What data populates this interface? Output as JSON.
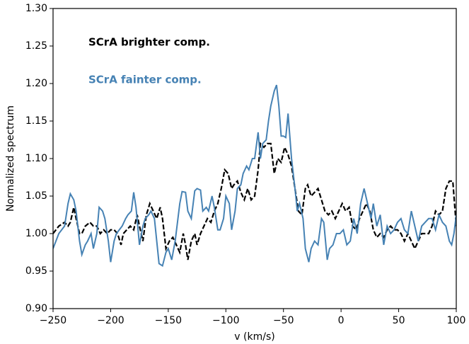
{
  "chart_data": {
    "type": "line",
    "xlabel": "v (km/s)",
    "ylabel": "Normalized spectrum",
    "xlim": [
      -250,
      100
    ],
    "xticks": [
      {
        "value": -250,
        "label": "−250"
      },
      {
        "value": -200,
        "label": "−200"
      },
      {
        "value": -150,
        "label": "−150"
      },
      {
        "value": -100,
        "label": "−100"
      },
      {
        "value": -50,
        "label": "−50"
      },
      0,
      50,
      100
    ],
    "ylim": [
      0.9,
      1.3
    ],
    "yticks": [
      {
        "value": 0.9,
        "label": "0.90"
      },
      0.95,
      {
        "value": 1.0,
        "label": "1.00"
      },
      1.05,
      {
        "value": 1.1,
        "label": "1.10"
      },
      1.15,
      {
        "value": 1.2,
        "label": "1.20"
      },
      1.25,
      {
        "value": 1.3,
        "label": "1.30"
      }
    ],
    "grid": false,
    "series": [
      {
        "name": "SCrA brighter comp.",
        "color": "#000000",
        "dashed": true,
        "x": [
          -250,
          -245,
          -240,
          -237,
          -235,
          -232,
          -230,
          -227,
          -225,
          -222,
          -218,
          -215,
          -212,
          -209,
          -206,
          -203,
          -200,
          -197,
          -194,
          -191,
          -189,
          -186,
          -183,
          -180,
          -177,
          -175,
          -172,
          -169,
          -166,
          -163,
          -160,
          -157,
          -155,
          -152,
          -149,
          -146,
          -143,
          -140,
          -137,
          -135,
          -133,
          -130,
          -127,
          -125,
          -122,
          -119,
          -116,
          -113,
          -110,
          -107,
          -104,
          -101,
          -98,
          -95,
          -93,
          -90,
          -87,
          -84,
          -81,
          -78,
          -75,
          -72,
          -70,
          -67,
          -64,
          -61,
          -58,
          -55,
          -52,
          -49,
          -46,
          -43,
          -40,
          -37,
          -34,
          -31,
          -29,
          -26,
          -23,
          -20,
          -17,
          -14,
          -11,
          -8,
          -5,
          -2,
          1,
          4,
          7,
          10,
          13,
          16,
          19,
          22,
          25,
          28,
          31,
          34,
          37,
          40,
          43,
          46,
          49,
          52,
          55,
          58,
          61,
          64,
          67,
          70,
          73,
          76,
          79,
          82,
          85,
          88,
          91,
          94,
          97,
          100
        ],
        "values": [
          1.0,
          1.01,
          1.015,
          1.01,
          1.015,
          1.035,
          1.02,
          1.0,
          1.0,
          1.01,
          1.015,
          1.01,
          1.01,
          1.0,
          1.005,
          1.0,
          1.005,
          1.005,
          1.0,
          0.985,
          1.0,
          1.005,
          1.01,
          1.005,
          1.025,
          1.01,
          0.99,
          1.025,
          1.04,
          1.03,
          1.02,
          1.035,
          1.02,
          0.98,
          0.99,
          0.995,
          0.985,
          0.975,
          1.0,
          0.985,
          0.965,
          0.99,
          1.0,
          0.985,
          1.0,
          1.01,
          1.02,
          1.015,
          1.03,
          1.04,
          1.06,
          1.085,
          1.08,
          1.06,
          1.065,
          1.07,
          1.055,
          1.045,
          1.06,
          1.045,
          1.05,
          1.085,
          1.12,
          1.115,
          1.12,
          1.12,
          1.08,
          1.1,
          1.095,
          1.115,
          1.105,
          1.09,
          1.06,
          1.03,
          1.025,
          1.06,
          1.065,
          1.05,
          1.055,
          1.06,
          1.045,
          1.03,
          1.025,
          1.03,
          1.02,
          1.03,
          1.04,
          1.03,
          1.035,
          1.01,
          1.005,
          1.02,
          1.03,
          1.04,
          1.03,
          1.005,
          0.995,
          1.0,
          0.995,
          1.005,
          1.01,
          1.005,
          1.005,
          1.0,
          0.99,
          1.0,
          0.99,
          0.98,
          0.99,
          1.0,
          1.0,
          1.0,
          1.01,
          1.03,
          1.025,
          1.03,
          1.06,
          1.07,
          1.07,
          1.01
        ]
      },
      {
        "name": "SCrA fainter comp.",
        "color": "#4682b4",
        "dashed": false,
        "x": [
          -250,
          -245,
          -240,
          -237,
          -235,
          -232,
          -230,
          -227,
          -225,
          -222,
          -220,
          -217,
          -215,
          -212,
          -210,
          -207,
          -205,
          -202,
          -200,
          -197,
          -195,
          -190,
          -187,
          -185,
          -182,
          -180,
          -178,
          -175,
          -172,
          -170,
          -167,
          -165,
          -162,
          -160,
          -158,
          -155,
          -152,
          -150,
          -147,
          -144,
          -140,
          -138,
          -135,
          -133,
          -130,
          -127,
          -125,
          -122,
          -120,
          -117,
          -115,
          -112,
          -110,
          -107,
          -105,
          -102,
          -100,
          -97,
          -95,
          -92,
          -90,
          -87,
          -85,
          -82,
          -80,
          -77,
          -75,
          -72,
          -70,
          -68,
          -65,
          -63,
          -61,
          -58,
          -56,
          -54,
          -52,
          -50,
          -48,
          -46,
          -43,
          -40,
          -38,
          -36,
          -33,
          -31,
          -28,
          -26,
          -23,
          -20,
          -17,
          -15,
          -12,
          -10,
          -7,
          -4,
          -1,
          2,
          5,
          8,
          11,
          14,
          17,
          20,
          23,
          26,
          28,
          31,
          34,
          37,
          40,
          43,
          46,
          49,
          52,
          55,
          58,
          61,
          64,
          67,
          70,
          73,
          76,
          79,
          82,
          85,
          88,
          91,
          94,
          96,
          98,
          100
        ],
        "values": [
          0.98,
          1.0,
          1.01,
          1.04,
          1.053,
          1.045,
          1.03,
          0.99,
          0.972,
          0.985,
          0.99,
          1.0,
          0.98,
          1.0,
          1.035,
          1.03,
          1.02,
          0.99,
          0.962,
          0.99,
          1.0,
          1.01,
          1.02,
          1.025,
          1.03,
          1.055,
          1.035,
          0.985,
          1.01,
          1.02,
          1.025,
          1.03,
          1.02,
          0.99,
          0.96,
          0.957,
          0.975,
          0.98,
          0.965,
          0.99,
          1.04,
          1.056,
          1.055,
          1.03,
          1.02,
          1.057,
          1.06,
          1.058,
          1.03,
          1.035,
          1.03,
          1.05,
          1.035,
          1.005,
          1.005,
          1.02,
          1.05,
          1.04,
          1.005,
          1.03,
          1.06,
          1.065,
          1.08,
          1.09,
          1.085,
          1.1,
          1.1,
          1.135,
          1.1,
          1.12,
          1.125,
          1.15,
          1.17,
          1.19,
          1.198,
          1.17,
          1.13,
          1.13,
          1.128,
          1.16,
          1.1,
          1.06,
          1.03,
          1.04,
          1.02,
          0.98,
          0.962,
          0.98,
          0.99,
          0.985,
          1.02,
          1.015,
          0.965,
          0.98,
          0.985,
          1.0,
          1.0,
          1.005,
          0.985,
          0.99,
          1.02,
          1.0,
          1.04,
          1.06,
          1.04,
          1.02,
          1.04,
          1.01,
          1.025,
          0.985,
          1.01,
          1.0,
          1.005,
          1.015,
          1.02,
          1.005,
          1.0,
          1.03,
          1.01,
          0.99,
          1.01,
          1.015,
          1.02,
          1.02,
          1.005,
          1.025,
          1.015,
          1.01,
          0.99,
          0.985,
          1.0,
          1.025
        ]
      }
    ]
  }
}
